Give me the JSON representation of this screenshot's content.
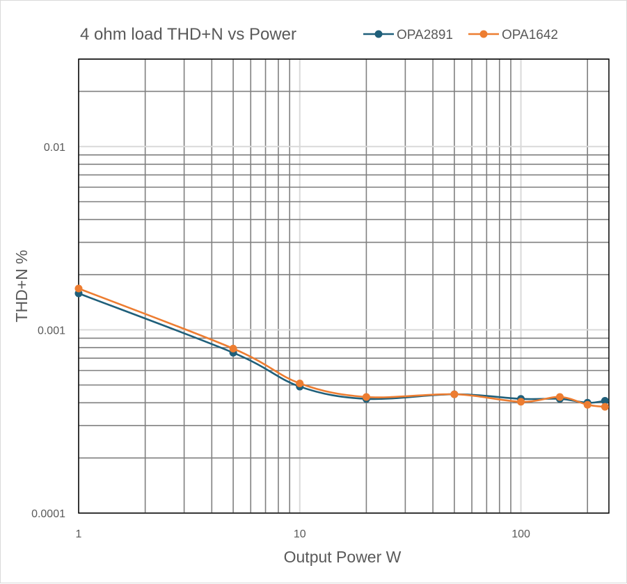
{
  "chart_data": {
    "type": "line",
    "title": "4 ohm load THD+N vs Power",
    "xlabel": "Output Power W",
    "ylabel": "THD+N %",
    "x_scale": "log",
    "y_scale": "log",
    "xlim": [
      1,
      250
    ],
    "ylim": [
      0.0001,
      0.03
    ],
    "x_tick_labels": [
      "1",
      "10",
      "100"
    ],
    "y_tick_labels": [
      "0.0001",
      "0.001",
      "0.01"
    ],
    "grid": true,
    "legend_position": "top-right",
    "series": [
      {
        "name": "OPA2891",
        "color": "#1f5f7a",
        "x": [
          1,
          5,
          10,
          20,
          50,
          100,
          150,
          200,
          240
        ],
        "y": [
          0.00158,
          0.00075,
          0.00049,
          0.00042,
          0.000445,
          0.00042,
          0.00042,
          0.0004,
          0.00041
        ]
      },
      {
        "name": "OPA1642",
        "color": "#ed7d31",
        "x": [
          1,
          5,
          10,
          20,
          50,
          100,
          150,
          200,
          240
        ],
        "y": [
          0.00168,
          0.00079,
          0.00051,
          0.00043,
          0.000445,
          0.000405,
          0.00043,
          0.00039,
          0.00038
        ]
      }
    ]
  }
}
